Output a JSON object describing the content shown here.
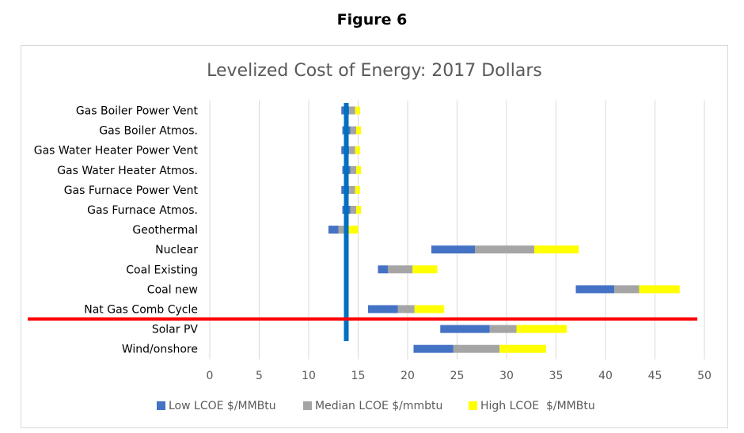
{
  "figure_label": "Figure 6",
  "colors": {
    "low": "#4472c4",
    "median": "#a5a5a5",
    "high": "#ffff00",
    "vertical_line": "#0070c0",
    "horizontal_line": "#ff0000",
    "grid": "#d9d9d9"
  },
  "chart_data": {
    "type": "bar",
    "orientation": "horizontal",
    "stacked": true,
    "title": "Levelized Cost of Energy: 2017 Dollars",
    "categories": [
      "Gas Boiler Power Vent",
      "Gas Boiler Atmos.",
      "Gas Water Heater Power Vent",
      "Gas Water Heater Atmos.",
      "Gas Furnace Power Vent",
      "Gas Furnace Atmos.",
      "Geothermal",
      "Nuclear",
      "Coal Existing",
      "Coal new",
      "Nat Gas Comb Cycle",
      "Solar PV",
      "Wind/onshore"
    ],
    "series": [
      {
        "name": "Low LCOE $/MMBtu",
        "ranges": [
          [
            13.3,
            14.1
          ],
          [
            13.4,
            14.2
          ],
          [
            13.3,
            14.1
          ],
          [
            13.4,
            14.2
          ],
          [
            13.3,
            14.1
          ],
          [
            13.4,
            14.2
          ],
          [
            12.0,
            13.0
          ],
          [
            22.4,
            26.8
          ],
          [
            17.0,
            18.0
          ],
          [
            37.0,
            40.9
          ],
          [
            16.0,
            19.0
          ],
          [
            23.3,
            28.3
          ],
          [
            20.6,
            24.6
          ]
        ]
      },
      {
        "name": "Median LCOE $/mmbtu",
        "ranges": [
          [
            14.1,
            14.7
          ],
          [
            14.2,
            14.8
          ],
          [
            14.1,
            14.7
          ],
          [
            14.2,
            14.8
          ],
          [
            14.1,
            14.7
          ],
          [
            14.2,
            14.8
          ],
          [
            13.0,
            13.8
          ],
          [
            26.8,
            32.8
          ],
          [
            18.0,
            20.5
          ],
          [
            40.9,
            43.4
          ],
          [
            19.0,
            20.7
          ],
          [
            28.3,
            31.0
          ],
          [
            24.6,
            29.3
          ]
        ]
      },
      {
        "name": "High LCOE  $/MMBtu",
        "ranges": [
          [
            14.7,
            15.2
          ],
          [
            14.8,
            15.3
          ],
          [
            14.7,
            15.2
          ],
          [
            14.8,
            15.3
          ],
          [
            14.7,
            15.2
          ],
          [
            14.8,
            15.3
          ],
          [
            13.8,
            15.0
          ],
          [
            32.8,
            37.3
          ],
          [
            20.5,
            23.0
          ],
          [
            43.4,
            47.5
          ],
          [
            20.7,
            23.7
          ],
          [
            31.0,
            36.1
          ],
          [
            29.3,
            34.0
          ]
        ]
      }
    ],
    "x_ticks": [
      "0",
      "5",
      "10",
      "15",
      "20",
      "25",
      "30",
      "35",
      "40",
      "45",
      "50"
    ],
    "xlim": [
      0,
      50
    ],
    "grid": true,
    "legend_position": "bottom",
    "reference_lines": {
      "vertical_x": 13.8,
      "horizontal_between": [
        "Nat Gas Comb Cycle",
        "Solar PV"
      ]
    }
  }
}
